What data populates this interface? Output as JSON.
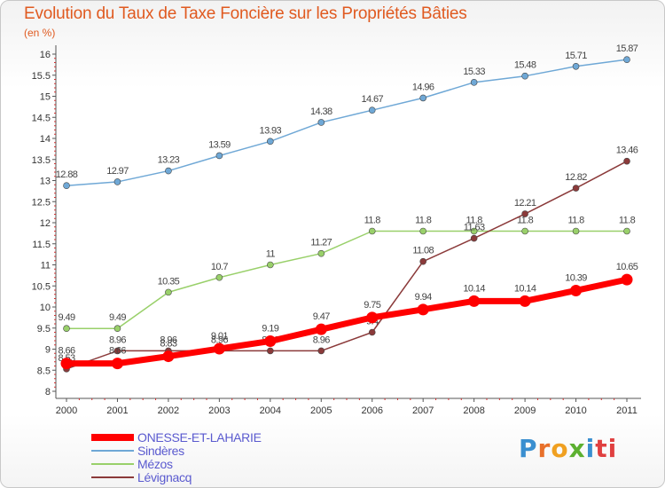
{
  "title": "Evolution du Taux de Taxe Foncière sur les Propriétés Bâties",
  "unit_label": "(en %)",
  "logo": [
    "P",
    "r",
    "o",
    "x",
    "i",
    "ti"
  ],
  "chart_data": {
    "type": "line",
    "title": "Evolution du Taux de Taxe Foncière sur les Propriétés Bâties",
    "ylabel": "(en %)",
    "xlabel": "",
    "x": [
      "2000",
      "2001",
      "2002",
      "2003",
      "2004",
      "2005",
      "2006",
      "2007",
      "2008",
      "2009",
      "2010",
      "2011"
    ],
    "ylim": [
      8,
      16
    ],
    "yticks": [
      "8",
      "8.5",
      "9",
      "9.5",
      "10",
      "10.5",
      "11",
      "11.5",
      "12",
      "12.5",
      "13",
      "13.5",
      "14",
      "14.5",
      "15",
      "15.5",
      "16"
    ],
    "grid": false,
    "legend_position": "bottom-left",
    "series": [
      {
        "name": "ONESSE-ET-LAHARIE",
        "color": "#ff0000",
        "values": [
          8.66,
          8.66,
          8.83,
          9.01,
          9.19,
          9.47,
          9.75,
          9.94,
          10.14,
          10.14,
          10.39,
          10.65
        ],
        "labels": [
          "8.66",
          "8.66",
          "8.83",
          "9.01",
          "9.19",
          "9.47",
          "9.75",
          "9.94",
          "10.14",
          "10.14",
          "10.39",
          "10.65"
        ]
      },
      {
        "name": "Sindères",
        "color": "#6fa8d6",
        "values": [
          12.88,
          12.97,
          13.23,
          13.59,
          13.93,
          14.38,
          14.67,
          14.96,
          15.33,
          15.48,
          15.71,
          15.87
        ],
        "labels": [
          "12.88",
          "12.97",
          "13.23",
          "13.59",
          "13.93",
          "14.38",
          "14.67",
          "14.96",
          "15.33",
          "15.48",
          "15.71",
          "15.87"
        ]
      },
      {
        "name": "Mézos",
        "color": "#99d06a",
        "values": [
          9.49,
          9.49,
          10.35,
          10.7,
          11.0,
          11.27,
          11.8,
          11.8,
          11.8,
          11.8,
          11.8,
          11.8
        ],
        "labels": [
          "9.49",
          "9.49",
          "10.35",
          "10.7",
          "11",
          "11.27",
          "11.8",
          "11.8",
          "11.8",
          "11.8",
          "11.8",
          "11.8"
        ]
      },
      {
        "name": "Lévignacq",
        "color": "#8b3a3a",
        "values": [
          8.53,
          8.96,
          8.96,
          8.96,
          8.96,
          8.96,
          9.4,
          11.08,
          11.63,
          12.21,
          12.82,
          13.46
        ],
        "labels": [
          "8.53",
          "8.96",
          "8.96",
          "8.96",
          "8.96",
          "8.96",
          "9.4",
          "11.08",
          "11.63",
          "12.21",
          "12.82",
          "13.46"
        ]
      }
    ]
  }
}
